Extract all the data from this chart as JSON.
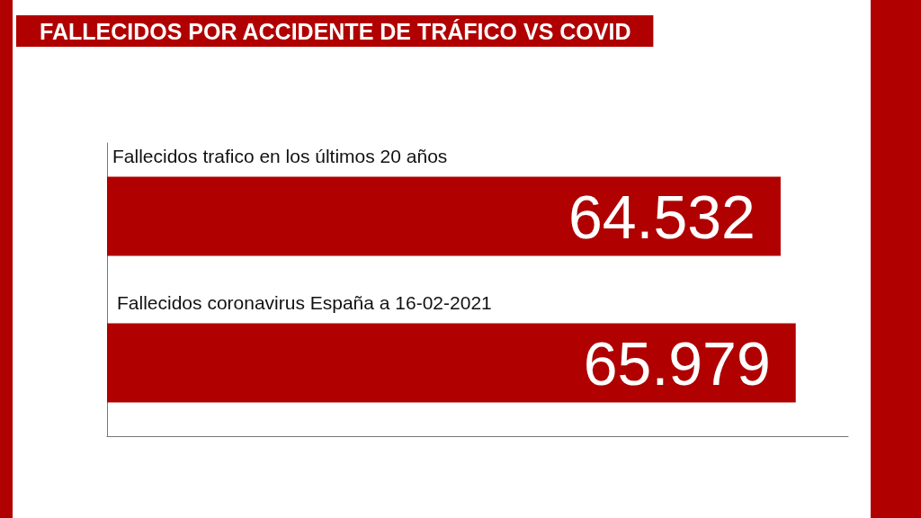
{
  "chart_data": {
    "type": "bar",
    "orientation": "horizontal",
    "title": "FALLECIDOS POR ACCIDENTE DE TRÁFICO VS COVID",
    "categories": [
      "Fallecidos trafico en los últimos 20 años",
      "Fallecidos coronavirus España a 16-02-2021"
    ],
    "values": [
      64532,
      65979
    ],
    "color": "#b00000",
    "value_labels": [
      "64.532",
      "65.979"
    ],
    "xlim": [
      0,
      71000
    ],
    "tick_labels": "y"
  }
}
